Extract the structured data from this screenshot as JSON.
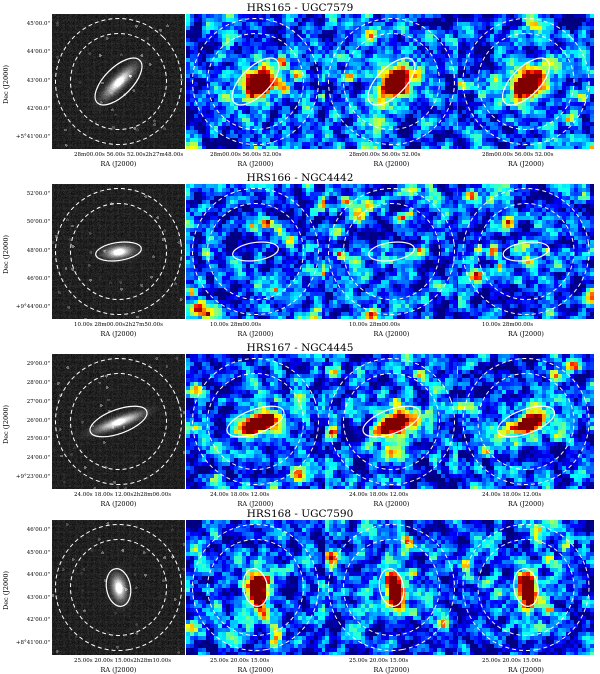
{
  "panels": [
    {
      "title": "HRS165 - UGC7579",
      "ylabel": "Dec (J2000)",
      "yticks": [
        "45'00.0\"",
        "44'00.0\"",
        "43'00.0\"",
        "42'00.0\"",
        "+5°41'00.0\""
      ],
      "xtick_optical": "28m00.00s 56.00s  52.00s2h27m48.00s",
      "xtick_map": "28m00.00s 56.00s   52.00s",
      "xlabel": "RA (J2000)",
      "galaxy_angle": -45,
      "galaxy_shape": "edge-on",
      "map_source": "compact",
      "map_seed": 11
    },
    {
      "title": "HRS166 - NGC4442",
      "ylabel": "Dec (J2000)",
      "yticks": [
        "52'00.0\"",
        "50'00.0\"",
        "48'00.0\"",
        "46'00.0\"",
        "+9°44'00.0\""
      ],
      "xtick_optical": "10.00s   28m00.00s2h27m50.00s",
      "xtick_map": "10.00s   28m00.00s",
      "xlabel": "RA (J2000)",
      "galaxy_angle": -8,
      "galaxy_shape": "lenticular",
      "map_source": "none",
      "map_seed": 37
    },
    {
      "title": "HRS167 - NGC4445",
      "ylabel": "Dec (J2000)",
      "yticks": [
        "29'00.0\"",
        "28'00.0\"",
        "27'00.0\"",
        "26'00.0\"",
        "25'00.0\"",
        "24'00.0\"",
        "+9°23'00.0\""
      ],
      "xtick_optical": "24.00s   18.00s   12.00s2h28m06.00s",
      "xtick_map": "24.00s   18.00s   12.00s",
      "xlabel": "RA (J2000)",
      "galaxy_angle": -20,
      "galaxy_shape": "edge-on",
      "map_source": "elongated",
      "map_seed": 53
    },
    {
      "title": "HRS168 - UGC7590",
      "ylabel": "Dec (J2000)",
      "yticks": [
        "46'00.0\"",
        "45'00.0\"",
        "44'00.0\"",
        "43'00.0\"",
        "42'00.0\"",
        "+8°41'00.0\""
      ],
      "xtick_optical": "25.00s   20.00s   15.00s2h28m10.00s",
      "xtick_map": "25.00s   20.00s   15.00s",
      "xlabel": "RA (J2000)",
      "galaxy_angle": 80,
      "galaxy_shape": "spiral",
      "map_source": "vertical",
      "map_seed": 71
    }
  ],
  "colors": {
    "ellipse_solid": "#ffffff",
    "ellipse_dashed": "#ffffff",
    "background": "#ffffff"
  }
}
